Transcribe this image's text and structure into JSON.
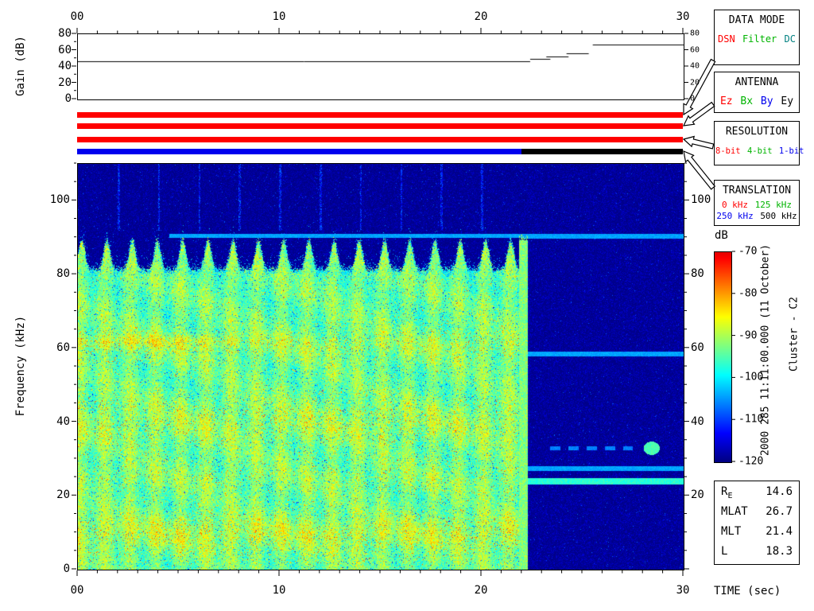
{
  "gain_panel": {
    "ylabel": "Gain (dB)",
    "ytick_labels": [
      "80",
      "60",
      "40",
      "20",
      "0"
    ],
    "ytick_values": [
      80,
      60,
      40,
      20,
      0
    ],
    "xtick_labels": [
      "00",
      "10",
      "20",
      "30"
    ],
    "xtick_values": [
      0,
      10,
      20,
      30
    ]
  },
  "spectrogram_axes": {
    "ylabel": "Frequency (kHz)",
    "ytick_labels": [
      "100",
      "80",
      "60",
      "40",
      "20",
      "0"
    ],
    "ytick_values": [
      100,
      80,
      60,
      40,
      20,
      0
    ],
    "right_ytick_labels": [
      "100",
      "80",
      "60",
      "40",
      "20"
    ],
    "right_ytick_values": [
      100,
      80,
      60,
      40,
      20
    ],
    "xtick_labels": [
      "00",
      "10",
      "20",
      "30"
    ],
    "xtick_values": [
      0,
      10,
      20,
      30
    ]
  },
  "panels": {
    "data_mode": {
      "title": "DATA MODE",
      "options": [
        {
          "label": "DSN",
          "color": "#ff0000"
        },
        {
          "label": "Filter",
          "color": "#00b400"
        },
        {
          "label": "DC",
          "color": "#008080"
        }
      ]
    },
    "antenna": {
      "title": "ANTENNA",
      "options": [
        {
          "label": "Ez",
          "color": "#ff0000"
        },
        {
          "label": "Bx",
          "color": "#00b400"
        },
        {
          "label": "By",
          "color": "#0000ee"
        },
        {
          "label": "Ey",
          "color": "#000000"
        }
      ]
    },
    "resolution": {
      "title": "RESOLUTION",
      "options": [
        {
          "label": "8-bit",
          "color": "#ff0000"
        },
        {
          "label": "4-bit",
          "color": "#00b400"
        },
        {
          "label": "1-bit",
          "color": "#0000ee"
        }
      ]
    },
    "translation": {
      "title": "TRANSLATION",
      "options": [
        {
          "label": "0 kHz",
          "color": "#ff0000"
        },
        {
          "label": "125 kHz",
          "color": "#00b400"
        },
        {
          "label": "250 kHz",
          "color": "#0000ee"
        },
        {
          "label": "500 kHz",
          "color": "#000000"
        }
      ]
    }
  },
  "status_bars": [
    {
      "name": "data-mode",
      "segments": [
        {
          "start": 0,
          "end": 30,
          "color": "#ff0000",
          "value": "DSN"
        }
      ]
    },
    {
      "name": "antenna",
      "segments": [
        {
          "start": 0,
          "end": 30,
          "color": "#ff0000",
          "value": "Ez"
        }
      ]
    },
    {
      "name": "resolution",
      "segments": [
        {
          "start": 0,
          "end": 30,
          "color": "#ff0000",
          "value": "8-bit"
        }
      ]
    },
    {
      "name": "translation",
      "segments": [
        {
          "start": 0,
          "end": 22,
          "color": "#0000ee",
          "value": "250 kHz"
        },
        {
          "start": 22,
          "end": 30,
          "color": "#000000",
          "value": "500 kHz"
        }
      ]
    }
  ],
  "colorbar": {
    "title": "dB",
    "tick_labels": [
      "-70",
      "-80",
      "-90",
      "-100",
      "-110",
      "-120"
    ],
    "tick_values": [
      -70,
      -80,
      -90,
      -100,
      -110,
      -120
    ],
    "max": -70,
    "min": -120
  },
  "side_labels": {
    "timestamp": "2000 285 11:11:00.000 (11 October)",
    "spacecraft": "Cluster - C2"
  },
  "ephemeris": {
    "rows": [
      {
        "label": "R",
        "sub": "E",
        "value": "14.6"
      },
      {
        "label": "MLAT",
        "sub": "",
        "value": "26.7"
      },
      {
        "label": "MLT",
        "sub": "",
        "value": "21.4"
      },
      {
        "label": "L",
        "sub": "",
        "value": "18.3"
      }
    ]
  },
  "time_axis_label": "TIME (sec)",
  "chart_data": [
    {
      "type": "line",
      "title": "Receiver gain",
      "xlabel": "TIME (sec)",
      "ylabel": "Gain (dB)",
      "xlim": [
        0,
        30
      ],
      "ylim": [
        0,
        80
      ],
      "series": [
        {
          "name": "gain",
          "segments": [
            {
              "x": [
                0,
                22.4
              ],
              "y": 47
            },
            {
              "x": [
                22.4,
                23.4
              ],
              "y": 50
            },
            {
              "x": [
                23.2,
                24.3
              ],
              "y": 53
            },
            {
              "x": [
                24.2,
                25.3
              ],
              "y": 57
            },
            {
              "x": [
                25.5,
                30
              ],
              "y": 67
            }
          ]
        }
      ]
    },
    {
      "type": "heatmap",
      "title": "Cluster C2 WBD wideband spectrogram",
      "xlabel": "TIME (sec)",
      "ylabel": "Frequency (kHz)",
      "xlim": [
        0,
        30
      ],
      "ylim": [
        0,
        110
      ],
      "colorbar_label": "dB",
      "colorbar_range": [
        -120,
        -70
      ],
      "transition_time_sec": 22,
      "features": [
        "0-22 sec: broadband noise ~-95 to -85 dB from 0 to ~80 kHz with scalloped upper edge reaching ~90 kHz",
        "red enhancements (~-75 dB) near 10, 25, 40 and 60 kHz",
        "dark blue background (~-118 dB) above 80 kHz with faint vertical lines every ~2 sec and a narrowband cyan line near 90 kHz",
        "22-30 sec: broadband signal drops to background; narrowband lines near 90, 58.5, 33 and 27.5 kHz (~-104 dB) plus a stronger line near 24 kHz (~-97 dB)",
        "translation changes from 250 kHz to 500 kHz at 22 sec (status bar blue to black)"
      ]
    }
  ]
}
